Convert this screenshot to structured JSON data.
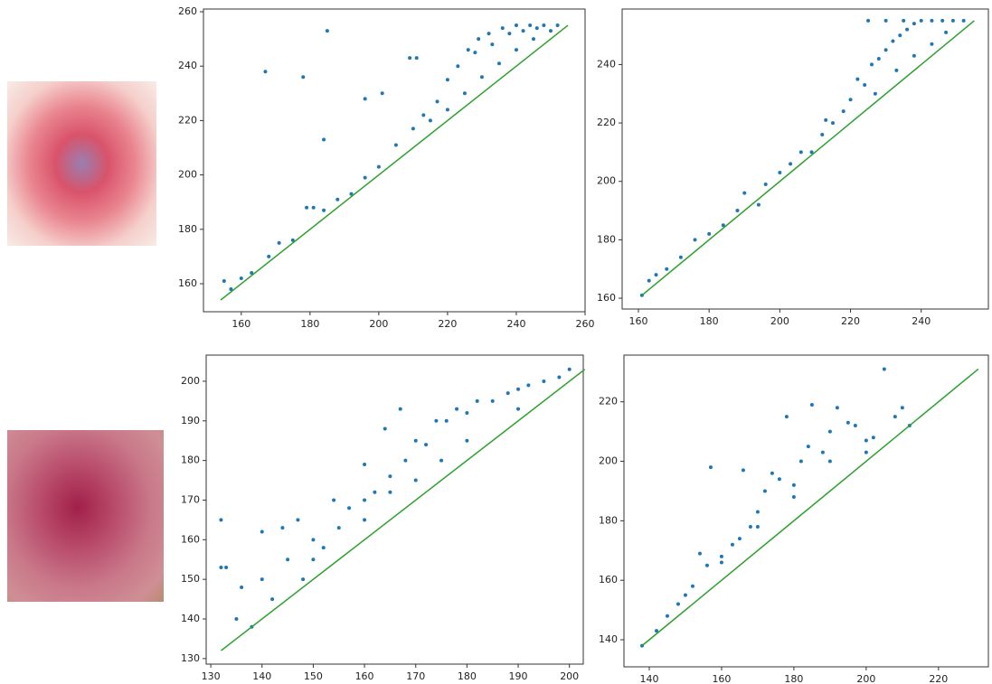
{
  "chart_data": [
    {
      "type": "scatter",
      "xlim": [
        149,
        260
      ],
      "ylim": [
        149.7,
        261
      ],
      "xticks": [
        160,
        180,
        200,
        220,
        240,
        260
      ],
      "yticks": [
        160,
        180,
        200,
        220,
        240,
        260
      ],
      "series": [
        {
          "type": "scatter",
          "color": "#1f77b4",
          "x": [
            167,
            178,
            185,
            184,
            196,
            201,
            209,
            211,
            155,
            157,
            160,
            163,
            168,
            171,
            175,
            179,
            181,
            184,
            188,
            192,
            196,
            200,
            205,
            210,
            213,
            217,
            220,
            223,
            226,
            229,
            232,
            236,
            240,
            244,
            248,
            252,
            225,
            230,
            235,
            240,
            245,
            250,
            220,
            215,
            228,
            233,
            238,
            242,
            246
          ],
          "values": [
            238,
            236,
            253,
            213,
            228,
            230,
            243,
            243,
            161,
            158,
            162,
            164,
            170,
            175,
            176,
            188,
            188,
            187,
            191,
            193,
            199,
            203,
            211,
            217,
            222,
            227,
            235,
            240,
            246,
            250,
            252,
            254,
            255,
            255,
            255,
            255,
            230,
            236,
            241,
            246,
            250,
            253,
            224,
            220,
            245,
            248,
            252,
            253,
            254
          ]
        },
        {
          "type": "line",
          "color": "#2ca02c",
          "x": [
            154,
            255
          ],
          "values": [
            154,
            255
          ]
        }
      ]
    },
    {
      "type": "scatter",
      "xlim": [
        155.4,
        259
      ],
      "ylim": [
        156.3,
        259
      ],
      "xticks": [
        160,
        180,
        200,
        220,
        240
      ],
      "yticks": [
        160,
        180,
        200,
        220,
        240
      ],
      "series": [
        {
          "type": "scatter",
          "color": "#1f77b4",
          "x": [
            161,
            163,
            165,
            168,
            172,
            176,
            180,
            184,
            188,
            190,
            194,
            196,
            200,
            203,
            206,
            209,
            212,
            213,
            215,
            218,
            220,
            222,
            224,
            226,
            228,
            230,
            232,
            234,
            236,
            238,
            240,
            243,
            246,
            249,
            252,
            225,
            230,
            235,
            227,
            233,
            238,
            243,
            247
          ],
          "values": [
            161,
            166,
            168,
            170,
            174,
            180,
            182,
            185,
            190,
            196,
            192,
            199,
            203,
            206,
            210,
            210,
            216,
            221,
            220,
            224,
            228,
            235,
            233,
            240,
            242,
            245,
            248,
            250,
            252,
            254,
            255,
            255,
            255,
            255,
            255,
            255,
            255,
            255,
            230,
            238,
            243,
            247,
            251
          ]
        },
        {
          "type": "line",
          "color": "#2ca02c",
          "x": [
            161,
            255
          ],
          "values": [
            161,
            255
          ]
        }
      ]
    },
    {
      "type": "scatter",
      "xlim": [
        129.1,
        202.7
      ],
      "ylim": [
        128.6,
        206.6
      ],
      "xticks": [
        130,
        140,
        150,
        160,
        170,
        180,
        190,
        200
      ],
      "yticks": [
        130,
        140,
        150,
        160,
        170,
        180,
        190,
        200
      ],
      "series": [
        {
          "type": "scatter",
          "color": "#1f77b4",
          "x": [
            132,
            132,
            133,
            135,
            136,
            138,
            140,
            140,
            142,
            144,
            145,
            147,
            148,
            150,
            152,
            154,
            155,
            157,
            160,
            160,
            162,
            164,
            165,
            167,
            168,
            170,
            172,
            174,
            176,
            178,
            180,
            182,
            185,
            188,
            190,
            192,
            195,
            198,
            200,
            150,
            160,
            170,
            180,
            190,
            175,
            165
          ],
          "values": [
            165,
            153,
            153,
            140,
            148,
            138,
            162,
            150,
            145,
            163,
            155,
            165,
            150,
            160,
            158,
            170,
            163,
            168,
            179,
            170,
            172,
            188,
            176,
            193,
            180,
            185,
            184,
            190,
            190,
            193,
            192,
            195,
            195,
            197,
            198,
            199,
            200,
            201,
            203,
            155,
            165,
            175,
            185,
            193,
            180,
            172
          ]
        },
        {
          "type": "line",
          "color": "#2ca02c",
          "x": [
            132,
            203
          ],
          "values": [
            132,
            203
          ]
        }
      ]
    },
    {
      "type": "scatter",
      "xlim": [
        133,
        233.8
      ],
      "ylim": [
        130.9,
        235.7
      ],
      "xticks": [
        140,
        160,
        180,
        200,
        220
      ],
      "yticks": [
        140,
        160,
        180,
        200,
        220
      ],
      "series": [
        {
          "type": "scatter",
          "color": "#1f77b4",
          "x": [
            138,
            142,
            145,
            148,
            150,
            152,
            154,
            156,
            157,
            160,
            163,
            165,
            166,
            168,
            170,
            172,
            174,
            176,
            178,
            180,
            182,
            184,
            185,
            188,
            190,
            192,
            195,
            197,
            200,
            202,
            205,
            208,
            210,
            212,
            190,
            180,
            170,
            160,
            200
          ],
          "values": [
            138,
            143,
            148,
            152,
            155,
            158,
            169,
            165,
            198,
            168,
            172,
            174,
            197,
            178,
            183,
            190,
            196,
            194,
            215,
            188,
            200,
            205,
            219,
            203,
            210,
            218,
            213,
            212,
            207,
            208,
            231,
            215,
            218,
            212,
            200,
            192,
            178,
            166,
            203
          ]
        },
        {
          "type": "line",
          "color": "#2ca02c",
          "x": [
            138,
            231
          ],
          "values": [
            138,
            231
          ]
        }
      ]
    }
  ]
}
